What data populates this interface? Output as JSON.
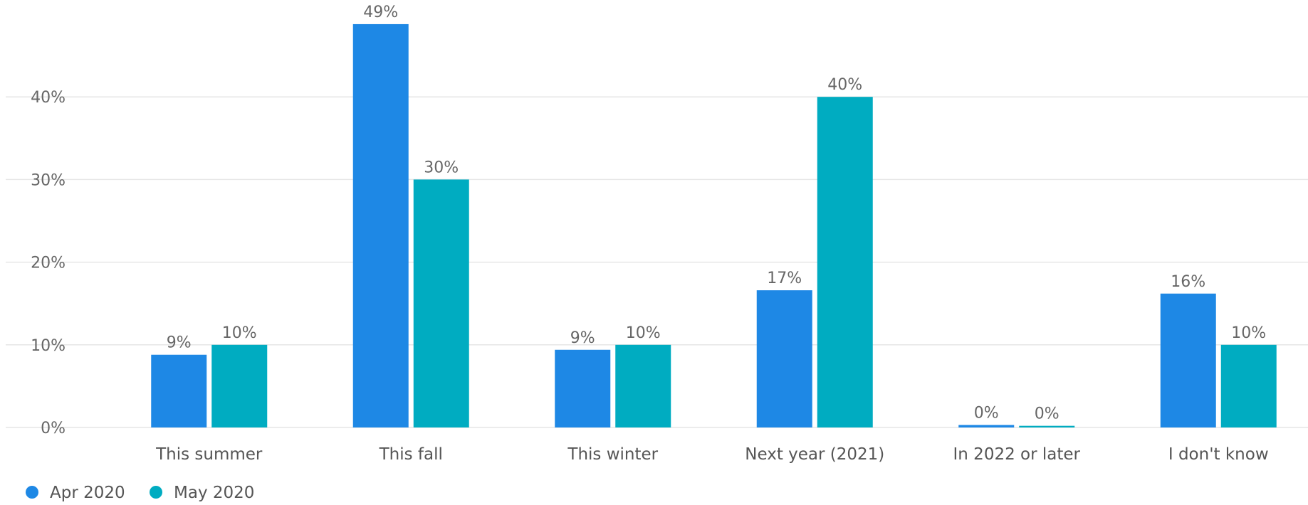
{
  "chart_data": {
    "type": "bar",
    "categories": [
      "This summer",
      "This fall",
      "This winter",
      "Next year (2021)",
      "In 2022 or later",
      "I don't know"
    ],
    "series": [
      {
        "name": "Apr 2020",
        "color": "#1e88e5",
        "values": [
          8.8,
          48.8,
          9.4,
          16.6,
          0.3,
          16.2
        ],
        "labels": [
          "9%",
          "49%",
          "9%",
          "17%",
          "0%",
          "16%"
        ]
      },
      {
        "name": "May 2020",
        "color": "#00acc1",
        "values": [
          10,
          30,
          10,
          40,
          0.2,
          10
        ],
        "labels": [
          "10%",
          "30%",
          "10%",
          "40%",
          "0%",
          "10%"
        ]
      }
    ],
    "y_ticks": [
      0,
      10,
      20,
      30,
      40
    ],
    "y_tick_labels": [
      "0%",
      "10%",
      "20%",
      "30%",
      "40%"
    ],
    "ylim": [
      0,
      50
    ],
    "grid": true,
    "legend_position": "bottom-left"
  }
}
